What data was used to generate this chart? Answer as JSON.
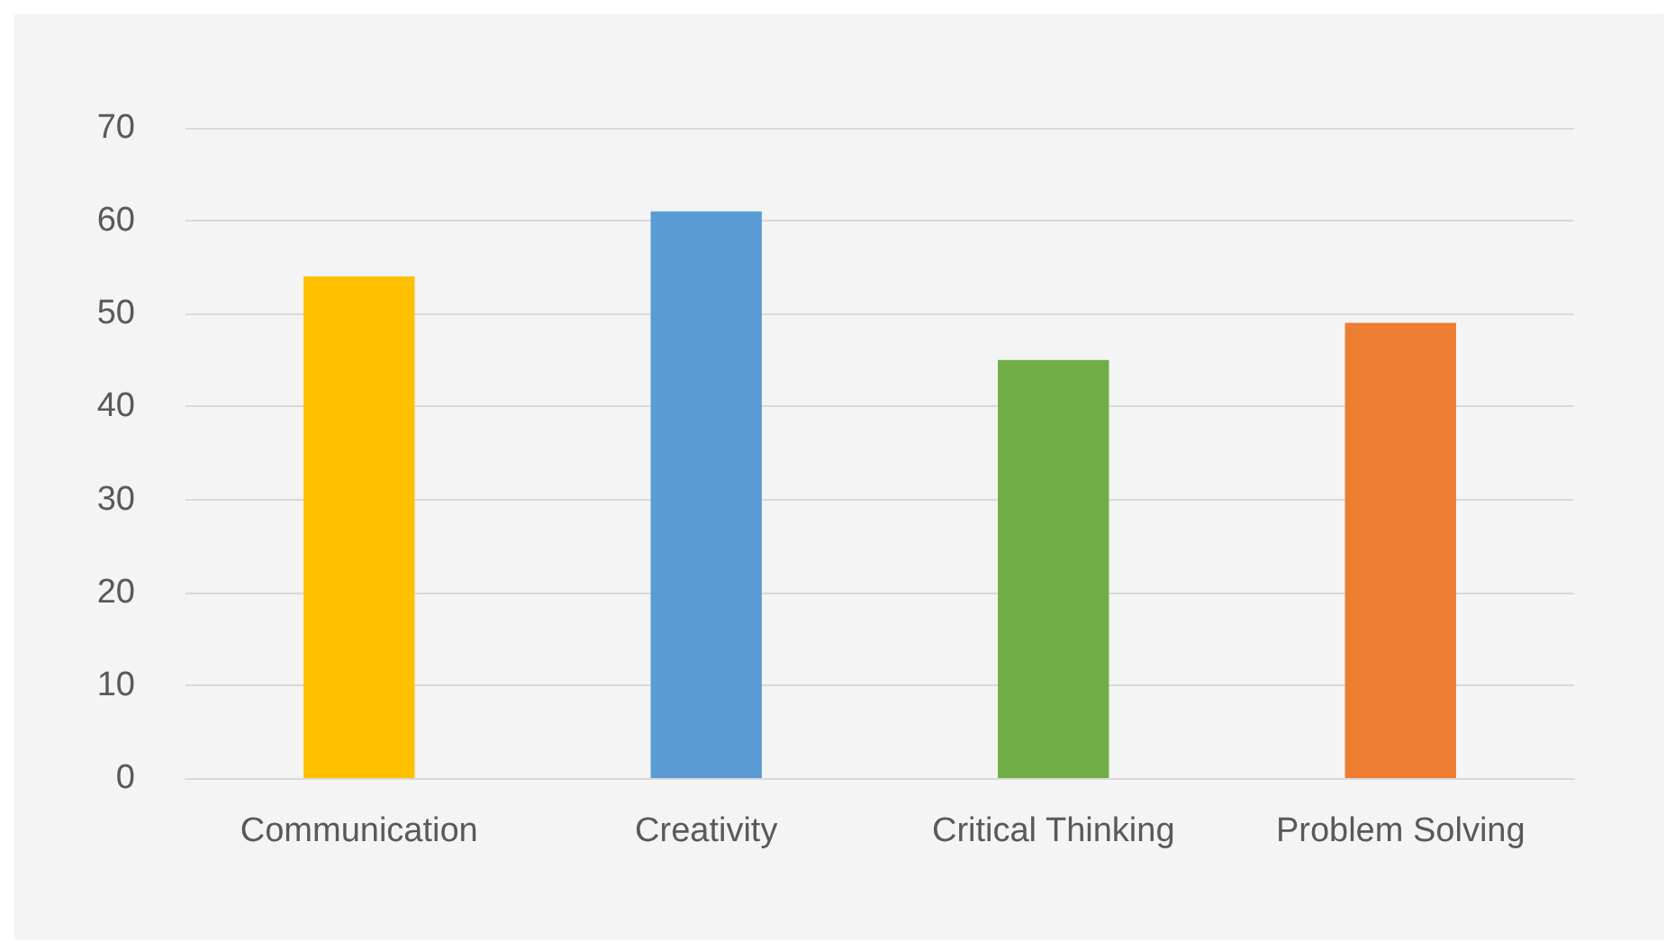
{
  "chart_data": {
    "type": "bar",
    "categories": [
      "Communication",
      "Creativity",
      "Critical Thinking",
      "Problem Solving"
    ],
    "values": [
      54,
      61,
      45,
      49
    ],
    "colors": [
      "#ffc000",
      "#5b9bd5",
      "#70ad47",
      "#ed7d31"
    ],
    "ylim": [
      0,
      70
    ],
    "yticks": [
      0,
      10,
      20,
      30,
      40,
      50,
      60,
      70
    ],
    "grid": "y"
  }
}
